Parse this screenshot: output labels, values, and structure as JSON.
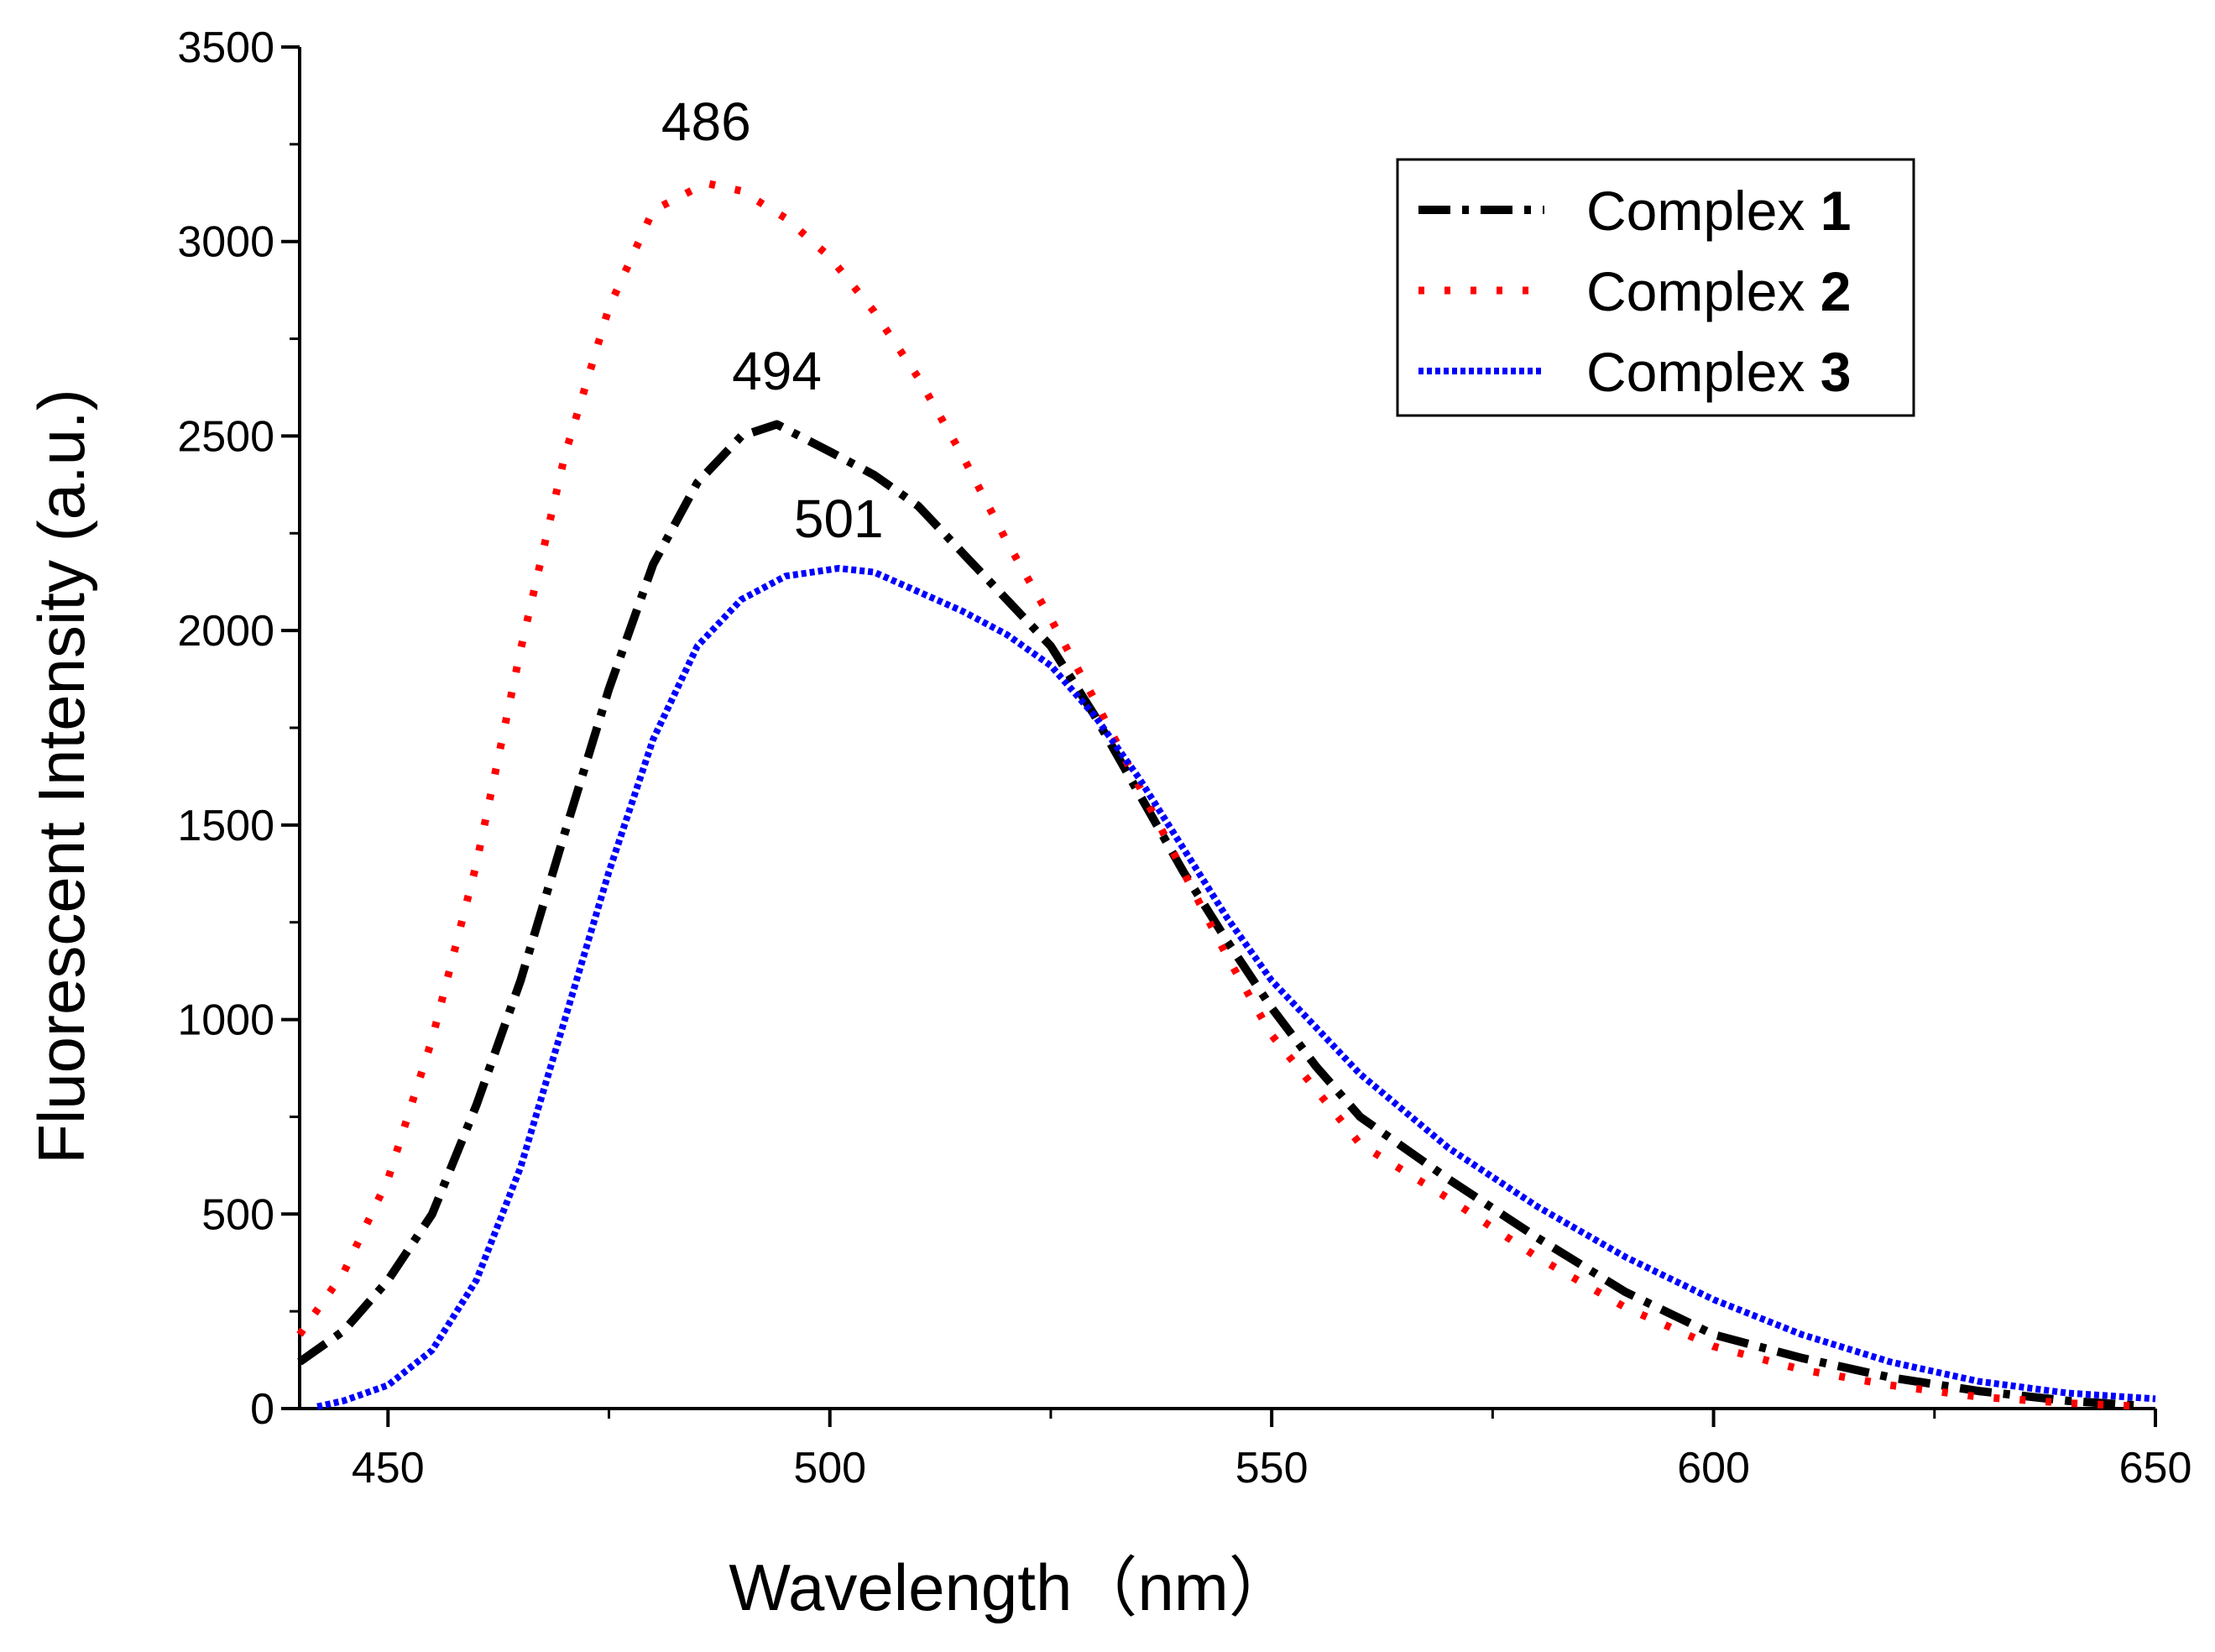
{
  "chart_data": {
    "type": "line",
    "title": "",
    "xlabel": "Wavelength（nm）",
    "ylabel": "Fluorescent Intensity (a.u.)",
    "xlim": [
      440,
      650
    ],
    "ylim": [
      0,
      3500
    ],
    "x_ticks": [
      "450",
      "500",
      "550",
      "600",
      "650"
    ],
    "y_ticks": [
      "0",
      "500",
      "1000",
      "1500",
      "2000",
      "2500",
      "3000",
      "3500"
    ],
    "grid": false,
    "legend_position": "top-right",
    "legend": [
      {
        "prefix": "Complex ",
        "num": "1"
      },
      {
        "prefix": "Complex ",
        "num": "2"
      },
      {
        "prefix": "Complex ",
        "num": "3"
      }
    ],
    "annotations": [
      {
        "text": "486",
        "x": 486,
        "y": 3260
      },
      {
        "text": "494",
        "x": 494,
        "y": 2620
      },
      {
        "text": "501",
        "x": 501,
        "y": 2240
      }
    ],
    "series": [
      {
        "name": "Complex 1",
        "color": "#000000",
        "style": "dash-dot",
        "x": [
          440,
          445,
          450,
          455,
          460,
          465,
          470,
          475,
          480,
          485,
          490,
          494,
          500,
          505,
          510,
          515,
          520,
          525,
          530,
          535,
          540,
          545,
          550,
          555,
          560,
          570,
          580,
          590,
          600,
          610,
          620,
          630,
          640,
          648
        ],
        "y": [
          120,
          200,
          330,
          500,
          780,
          1100,
          1480,
          1850,
          2170,
          2380,
          2500,
          2530,
          2460,
          2400,
          2320,
          2200,
          2080,
          1960,
          1780,
          1580,
          1380,
          1200,
          1030,
          880,
          750,
          590,
          440,
          300,
          190,
          130,
          80,
          45,
          20,
          8
        ]
      },
      {
        "name": "Complex 2",
        "color": "#ff0000",
        "style": "dotted",
        "x": [
          440,
          445,
          450,
          455,
          460,
          465,
          470,
          475,
          480,
          486,
          490,
          495,
          500,
          505,
          510,
          515,
          520,
          525,
          530,
          535,
          540,
          545,
          550,
          555,
          560,
          570,
          580,
          590,
          600,
          610,
          620,
          630,
          640,
          648
        ],
        "y": [
          190,
          350,
          590,
          950,
          1400,
          1950,
          2450,
          2830,
          3080,
          3150,
          3130,
          3060,
          2960,
          2820,
          2650,
          2450,
          2230,
          2030,
          1820,
          1600,
          1380,
          1160,
          960,
          820,
          680,
          540,
          390,
          260,
          160,
          100,
          60,
          30,
          14,
          6
        ]
      },
      {
        "name": "Complex 3",
        "color": "#0000ff",
        "style": "dashed",
        "x": [
          442,
          445,
          450,
          455,
          460,
          465,
          470,
          475,
          480,
          485,
          490,
          495,
          501,
          505,
          510,
          515,
          520,
          525,
          530,
          535,
          540,
          545,
          550,
          555,
          560,
          570,
          580,
          590,
          600,
          610,
          620,
          630,
          640,
          650
        ],
        "y": [
          5,
          20,
          60,
          150,
          330,
          620,
          1000,
          1380,
          1720,
          1960,
          2080,
          2140,
          2160,
          2150,
          2100,
          2050,
          1990,
          1910,
          1780,
          1620,
          1440,
          1260,
          1100,
          980,
          860,
          670,
          520,
          390,
          280,
          190,
          120,
          70,
          40,
          25
        ]
      }
    ]
  }
}
